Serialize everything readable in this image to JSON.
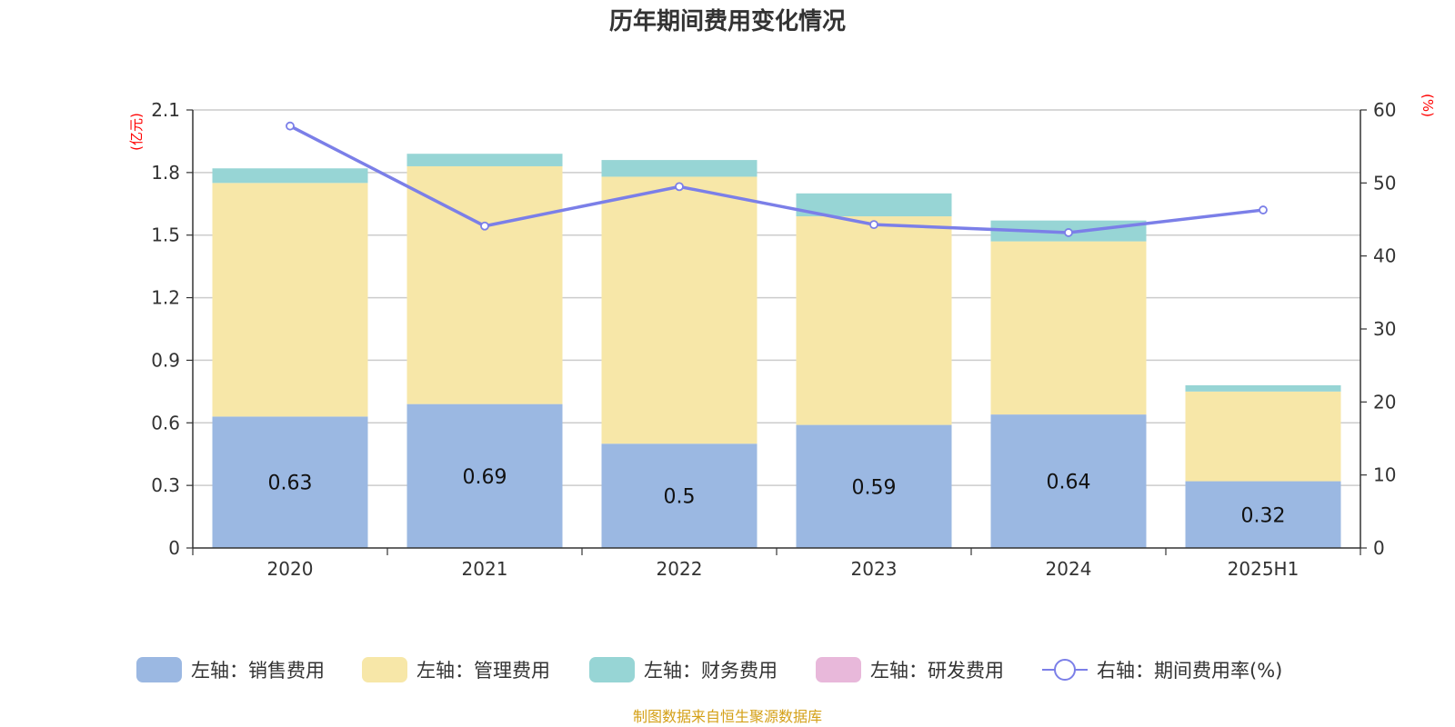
{
  "chart_data": {
    "type": "bar",
    "title": "历年期间费用变化情况",
    "categories": [
      "2020",
      "2021",
      "2022",
      "2023",
      "2024",
      "2025H1"
    ],
    "left_axis": {
      "unit": "(亿元)",
      "ylim": [
        0,
        2.1
      ],
      "ticks": [
        "0",
        "0.3",
        "0.6",
        "0.9",
        "1.2",
        "1.5",
        "1.8",
        "2.1"
      ]
    },
    "right_axis": {
      "unit": "(%)",
      "ylim": [
        0,
        60
      ],
      "ticks": [
        "0",
        "10",
        "20",
        "30",
        "40",
        "50",
        "60"
      ]
    },
    "series": [
      {
        "name": "左轴：销售费用",
        "type": "bar",
        "color": "#9bb8e2",
        "values": [
          0.63,
          0.69,
          0.5,
          0.59,
          0.64,
          0.32
        ],
        "labels": [
          "0.63",
          "0.69",
          "0.5",
          "0.59",
          "0.64",
          "0.32"
        ]
      },
      {
        "name": "左轴：管理费用",
        "type": "bar",
        "color": "#f7e7a8",
        "values": [
          1.12,
          1.14,
          1.28,
          1.0,
          0.83,
          0.43
        ]
      },
      {
        "name": "左轴：财务费用",
        "type": "bar",
        "color": "#97d5d5",
        "values": [
          0.07,
          0.06,
          0.08,
          0.11,
          0.1,
          0.03
        ]
      },
      {
        "name": "左轴：研发费用",
        "type": "bar",
        "color": "#e8b8da",
        "values": [
          0,
          0,
          0,
          0,
          0,
          0
        ]
      },
      {
        "name": "右轴：期间费用率(%)",
        "type": "line",
        "color": "#7b7fe8",
        "values": [
          57.8,
          44.1,
          49.5,
          44.3,
          43.2,
          46.3
        ]
      }
    ],
    "grid": true,
    "legend_position": "bottom"
  },
  "footer": {
    "source": "制图数据来自恒生聚源数据库"
  }
}
